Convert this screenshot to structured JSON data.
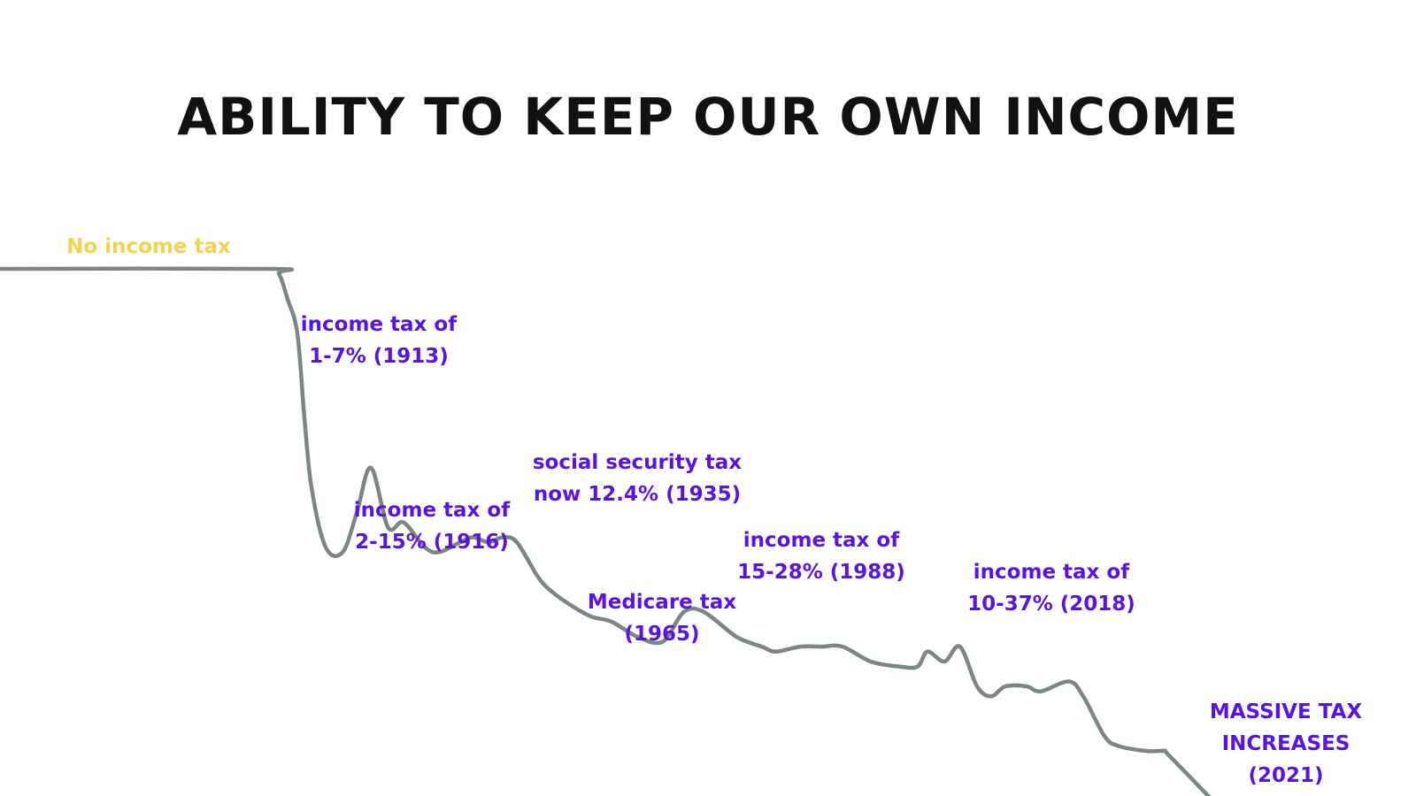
{
  "chart_data": {
    "type": "line",
    "title": "ABILITY TO KEEP OUR OWN INCOME",
    "xlabel": "",
    "ylabel": "",
    "grid": false,
    "legend": "none",
    "colors": {
      "line": "#7d8782",
      "first_annotation": "#f5d24b",
      "annotation": "#5a14e0",
      "title": "#111111"
    },
    "series": [
      {
        "name": "",
        "points": [
          [
            0.0,
            100
          ],
          [
            0.19,
            100
          ],
          [
            0.197,
            99
          ],
          [
            0.203,
            94
          ],
          [
            0.21,
            87
          ],
          [
            0.215,
            70
          ],
          [
            0.22,
            56
          ],
          [
            0.23,
            44
          ],
          [
            0.242,
            43
          ],
          [
            0.252,
            51
          ],
          [
            0.262,
            60
          ],
          [
            0.274,
            48
          ],
          [
            0.285,
            49
          ],
          [
            0.3,
            44
          ],
          [
            0.31,
            43
          ],
          [
            0.325,
            45
          ],
          [
            0.334,
            46
          ],
          [
            0.345,
            45
          ],
          [
            0.355,
            46
          ],
          [
            0.365,
            45
          ],
          [
            0.38,
            38
          ],
          [
            0.39,
            35
          ],
          [
            0.405,
            32
          ],
          [
            0.418,
            30
          ],
          [
            0.432,
            29
          ],
          [
            0.45,
            26
          ],
          [
            0.468,
            25
          ],
          [
            0.483,
            31
          ],
          [
            0.497,
            31
          ],
          [
            0.52,
            26
          ],
          [
            0.538,
            24
          ],
          [
            0.548,
            23
          ],
          [
            0.565,
            24
          ],
          [
            0.58,
            24
          ],
          [
            0.595,
            24
          ],
          [
            0.615,
            21
          ],
          [
            0.635,
            20
          ],
          [
            0.648,
            20
          ],
          [
            0.655,
            23
          ],
          [
            0.667,
            21
          ],
          [
            0.678,
            24
          ],
          [
            0.69,
            16
          ],
          [
            0.7,
            14
          ],
          [
            0.71,
            16
          ],
          [
            0.725,
            16
          ],
          [
            0.735,
            15
          ],
          [
            0.755,
            17
          ],
          [
            0.765,
            14
          ],
          [
            0.78,
            6
          ],
          [
            0.79,
            4
          ],
          [
            0.81,
            3
          ],
          [
            0.822,
            3
          ],
          [
            0.826,
            2
          ],
          [
            0.86,
            -8
          ]
        ]
      }
    ],
    "annotations": [
      {
        "lines": [
          "No income tax"
        ],
        "style": "first"
      },
      {
        "lines": [
          "income tax of",
          "1-7% (1913)"
        ],
        "style": "event"
      },
      {
        "lines": [
          "income tax of",
          "2-15% (1916)"
        ],
        "style": "event"
      },
      {
        "lines": [
          "social security tax",
          "now 12.4% (1935)"
        ],
        "style": "event"
      },
      {
        "lines": [
          "Medicare tax",
          "(1965)"
        ],
        "style": "event"
      },
      {
        "lines": [
          "income tax of",
          "15-28% (1988)"
        ],
        "style": "event"
      },
      {
        "lines": [
          "income tax of",
          "10-37% (2018)"
        ],
        "style": "event"
      },
      {
        "lines": [
          "MASSIVE TAX",
          "INCREASES",
          "(2021)"
        ],
        "style": "event"
      }
    ]
  }
}
